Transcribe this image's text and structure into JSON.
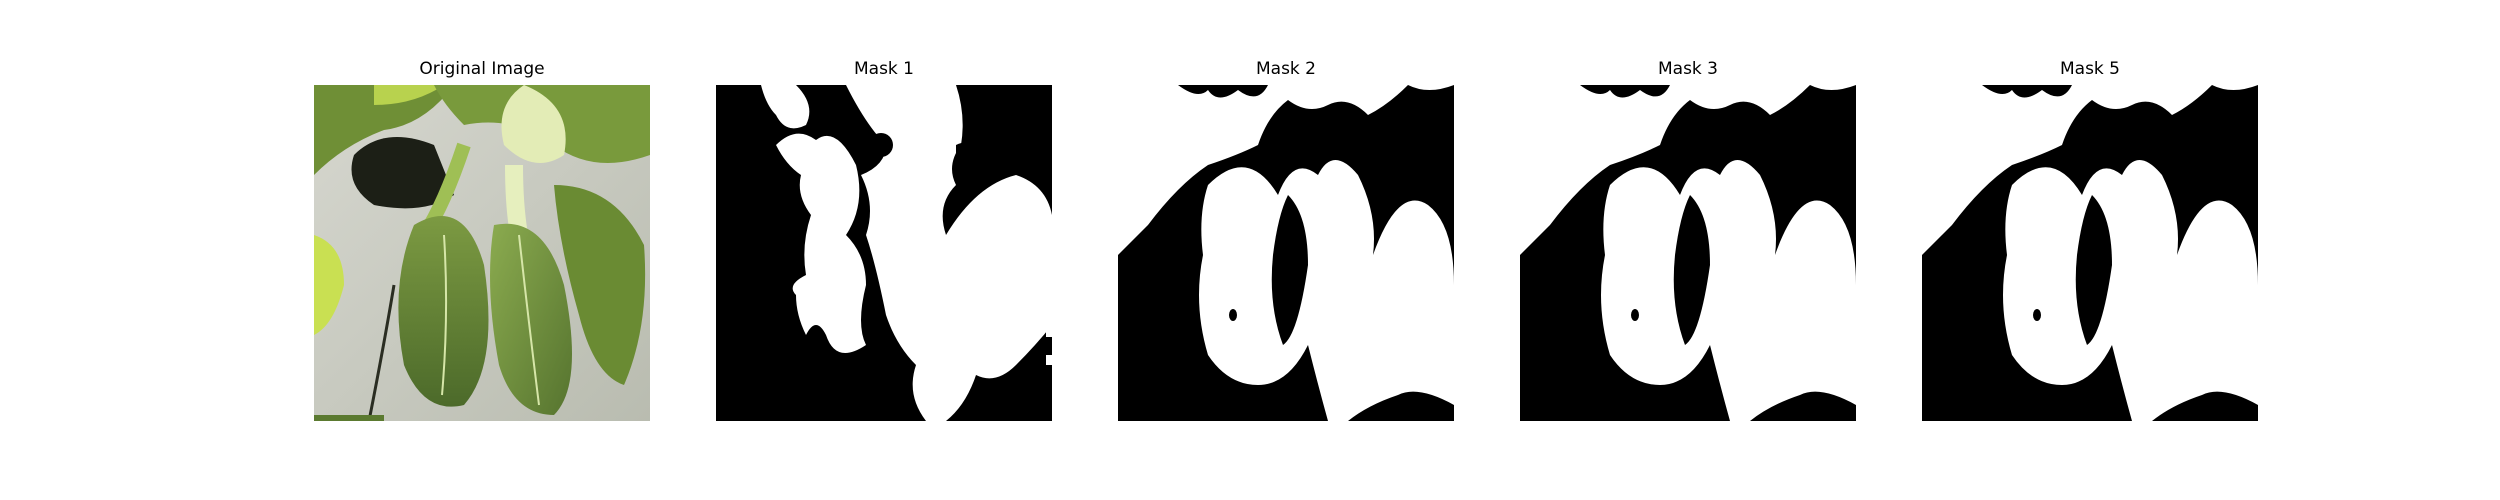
{
  "panels": [
    {
      "title": "Original Image"
    },
    {
      "title": "Mask 1"
    },
    {
      "title": "Mask 2"
    },
    {
      "title": "Mask 3"
    },
    {
      "title": "Mask 5"
    }
  ],
  "colors": {
    "mask_fg": "#ffffff",
    "mask_bg": "#000000",
    "wall": "#c9cbc0",
    "leaf_dark": "#4f6f2e",
    "leaf_light": "#8fae4e"
  }
}
